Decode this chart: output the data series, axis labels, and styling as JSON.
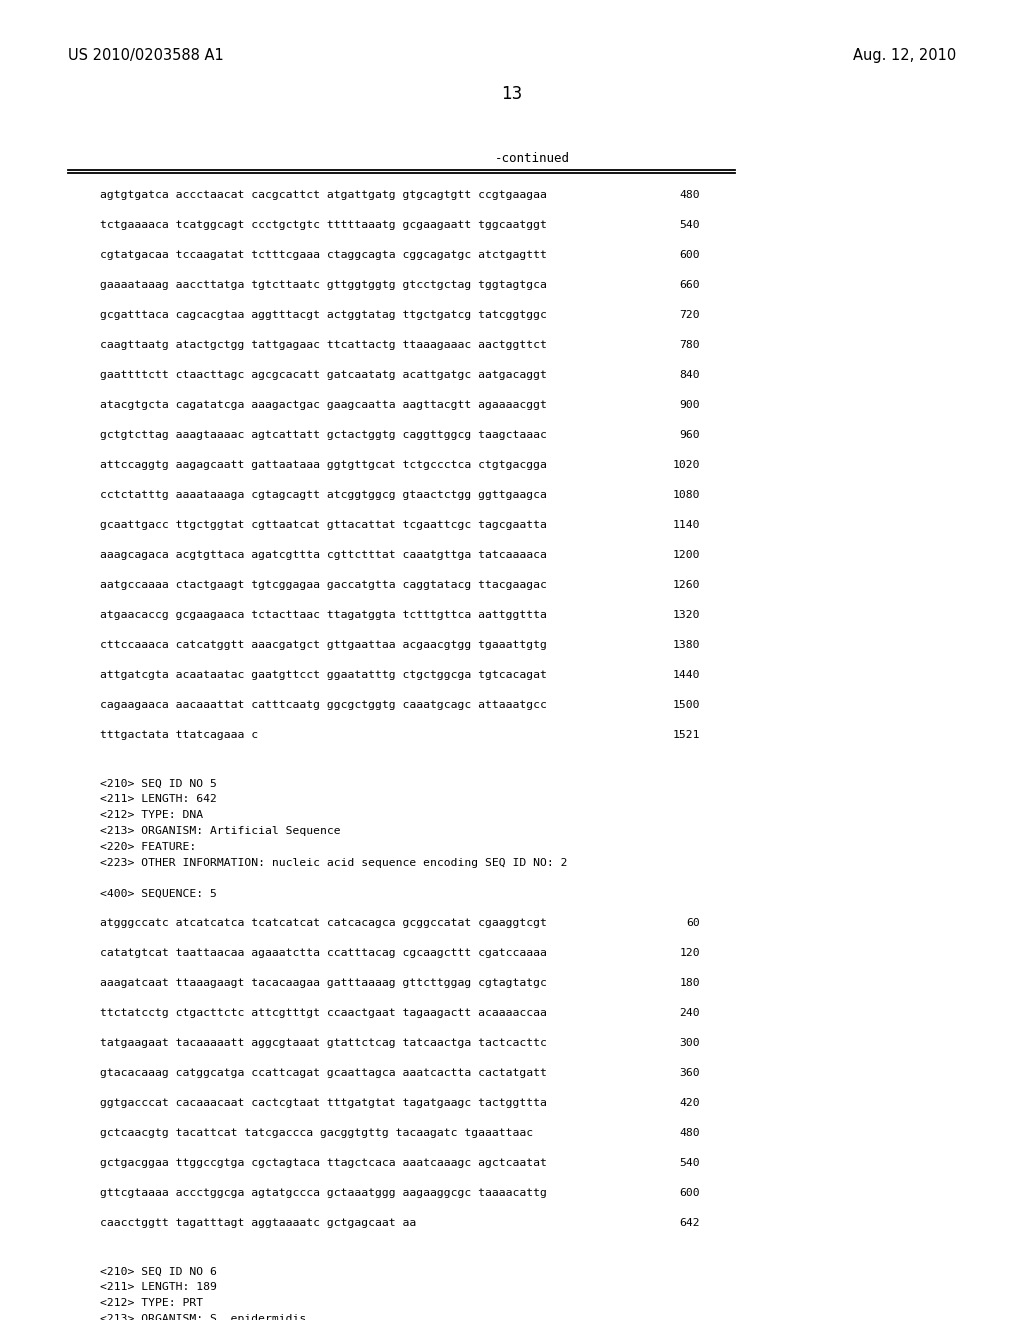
{
  "background_color": "#ffffff",
  "page_number": "13",
  "left_header": "US 2010/0203588 A1",
  "right_header": "Aug. 12, 2010",
  "continued_label": "-continued",
  "top_lines": [
    [
      "agtgtgatca accctaacat cacgcattct atgattgatg gtgcagtgtt ccgtgaagaa",
      "480"
    ],
    [
      "tctgaaaaca tcatggcagt ccctgctgtc tttttaaatg gcgaagaatt tggcaatggt",
      "540"
    ],
    [
      "cgtatgacaa tccaagatat tctttcgaaa ctaggcagta cggcagatgc atctgagttt",
      "600"
    ],
    [
      "gaaaataaag aaccttatga tgtcttaatc gttggtggtg gtcctgctag tggtagtgca",
      "660"
    ],
    [
      "gcgatttaca cagcacgtaa aggtttacgt actggtatag ttgctgatcg tatcggtggc",
      "720"
    ],
    [
      "caagttaatg atactgctgg tattgagaac ttcattactg ttaaagaaac aactggttct",
      "780"
    ],
    [
      "gaattttctt ctaacttagc agcgcacatt gatcaatatg acattgatgc aatgacaggt",
      "840"
    ],
    [
      "atacgtgcta cagatatcga aaagactgac gaagcaatta aagttacgtt agaaaacggt",
      "900"
    ],
    [
      "gctgtcttag aaagtaaaac agtcattatt gctactggtg caggttggcg taagctaaac",
      "960"
    ],
    [
      "attccaggtg aagagcaatt gattaataaa ggtgttgcat tctgccctca ctgtgacgga",
      "1020"
    ],
    [
      "cctctatttg aaaataaaga cgtagcagtt atcggtggcg gtaactctgg ggttgaagca",
      "1080"
    ],
    [
      "gcaattgacc ttgctggtat cgttaatcat gttacattat tcgaattcgc tagcgaatta",
      "1140"
    ],
    [
      "aaagcagaca acgtgttaca agatcgttta cgttctttat caaatgttga tatcaaaaca",
      "1200"
    ],
    [
      "aatgccaaaa ctactgaagt tgtcggagaa gaccatgtta caggtatacg ttacgaagac",
      "1260"
    ],
    [
      "atgaacaccg gcgaagaaca tctacttaac ttagatggta tctttgttca aattggttta",
      "1320"
    ],
    [
      "cttccaaaca catcatggtt aaacgatgct gttgaattaa acgaacgtgg tgaaattgtg",
      "1380"
    ],
    [
      "attgatcgta acaataatac gaatgttcct ggaatatttg ctgctggcga tgtcacagat",
      "1440"
    ],
    [
      "cagaagaaca aacaaattat catttcaatg ggcgctggtg caaatgcagc attaaatgcc",
      "1500"
    ],
    [
      "tttgactata ttatcagaaa c",
      "1521"
    ]
  ],
  "metadata_block": [
    "<210> SEQ ID NO 5",
    "<211> LENGTH: 642",
    "<212> TYPE: DNA",
    "<213> ORGANISM: Artificial Sequence",
    "<220> FEATURE:",
    "<223> OTHER INFORMATION: nucleic acid sequence encoding SEQ ID NO: 2"
  ],
  "sequence_label": "<400> SEQUENCE: 5",
  "bottom_lines": [
    [
      "atgggccatc atcatcatca tcatcatcat catcacagca gcggccatat cgaaggtcgt",
      "60"
    ],
    [
      "catatgtcat taattaacaa agaaatctta ccatttacag cgcaagcttt cgatccaaaa",
      "120"
    ],
    [
      "aaagatcaat ttaaagaagt tacacaagaa gatttaaaag gttcttggag cgtagtatgc",
      "180"
    ],
    [
      "ttctatcctg ctgacttctc attcgtttgt ccaactgaat tagaagactt acaaaaccaa",
      "240"
    ],
    [
      "tatgaagaat tacaaaaatt aggcgtaaat gtattctcag tatcaactga tactcacttc",
      "300"
    ],
    [
      "gtacacaaag catggcatga ccattcagat gcaattagca aaatcactta cactatgatt",
      "360"
    ],
    [
      "ggtgacccat cacaaacaat cactcgtaat tttgatgtat tagatgaagc tactggttta",
      "420"
    ],
    [
      "gctcaacgtg tacattcat tatcgaccca gacggtgttg tacaagatc tgaaattaac",
      "480"
    ],
    [
      "gctgacggaa ttggccgtga cgctagtaca ttagctcaca aaatcaaagc agctcaatat",
      "540"
    ],
    [
      "gttcgtaaaa accctggcga agtatgccca gctaaatggg aagaaggcgc taaaacattg",
      "600"
    ],
    [
      "caacctggtt tagatttagt aggtaaaatc gctgagcaat aa",
      "642"
    ]
  ],
  "footer_metadata": [
    "<210> SEQ ID NO 6",
    "<211> LENGTH: 189",
    "<212> TYPE: PRT",
    "<213> ORGANISM: S. epidermidis"
  ]
}
